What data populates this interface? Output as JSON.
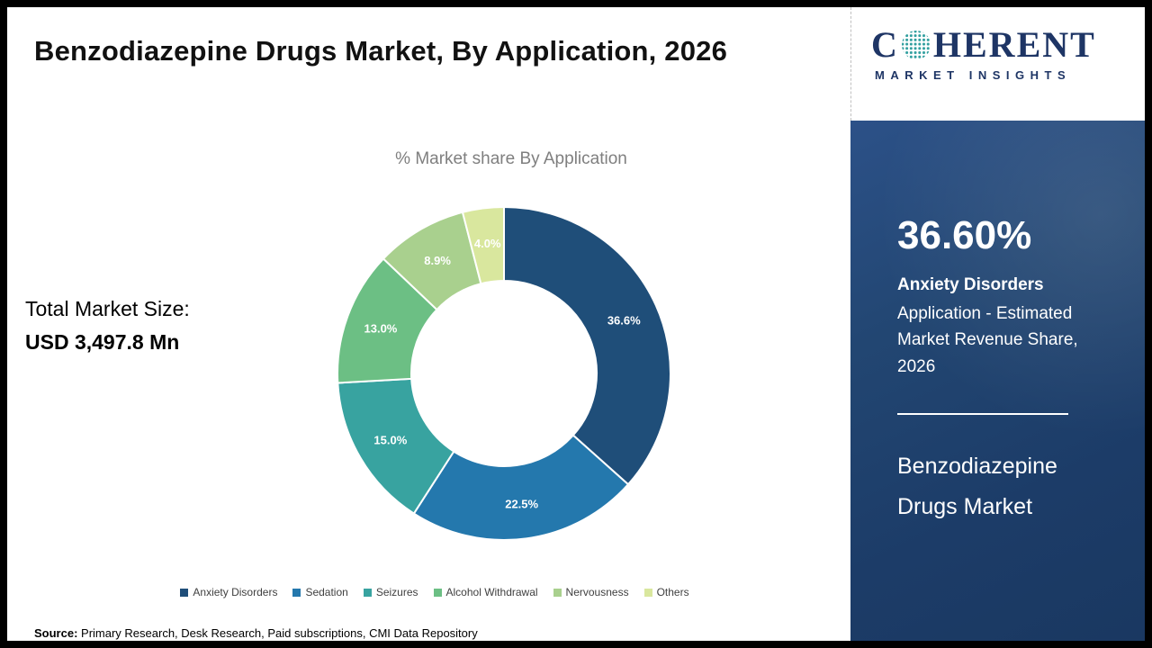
{
  "page": {
    "title": "Benzodiazepine Drugs Market,  By Application, 2026"
  },
  "logo": {
    "brand_first_letter": "C",
    "brand_rest": "HERENT",
    "subtitle": "MARKET INSIGHTS",
    "brand_color": "#1e3565",
    "globe_dot_color": "#2f9e9e"
  },
  "left_panel": {
    "total_label": "Total Market Size:",
    "total_value": "USD 3,497.8 Mn"
  },
  "chart_data": {
    "type": "pie",
    "subtype": "donut",
    "title": "% Market share  By Application",
    "categories": [
      "Anxiety Disorders",
      "Sedation",
      "Seizures",
      "Alcohol Withdrawal",
      "Nervousness",
      "Others"
    ],
    "values": [
      36.6,
      22.5,
      15.0,
      13.0,
      8.9,
      4.0
    ],
    "labels": [
      "36.6%",
      "22.5%",
      "15.0%",
      "13.0%",
      "8.9%",
      "4.0%"
    ],
    "colors": [
      "#1f4e79",
      "#2478ad",
      "#38a3a0",
      "#6cbf84",
      "#a9d08e",
      "#d9e79e"
    ],
    "legend_position": "bottom",
    "start_angle": 0,
    "direction": "clockwise"
  },
  "side_panel": {
    "highlight_value": "36.60%",
    "highlight_title": "Anxiety Disorders",
    "highlight_description": "Application - Estimated Market Revenue Share, 2026",
    "market_name": "Benzodiazepine Drugs Market",
    "background_color": "#1e3f6e"
  },
  "footer": {
    "source_label": "Source:",
    "source_text": " Primary Research, Desk Research, Paid subscriptions, CMI Data Repository"
  }
}
